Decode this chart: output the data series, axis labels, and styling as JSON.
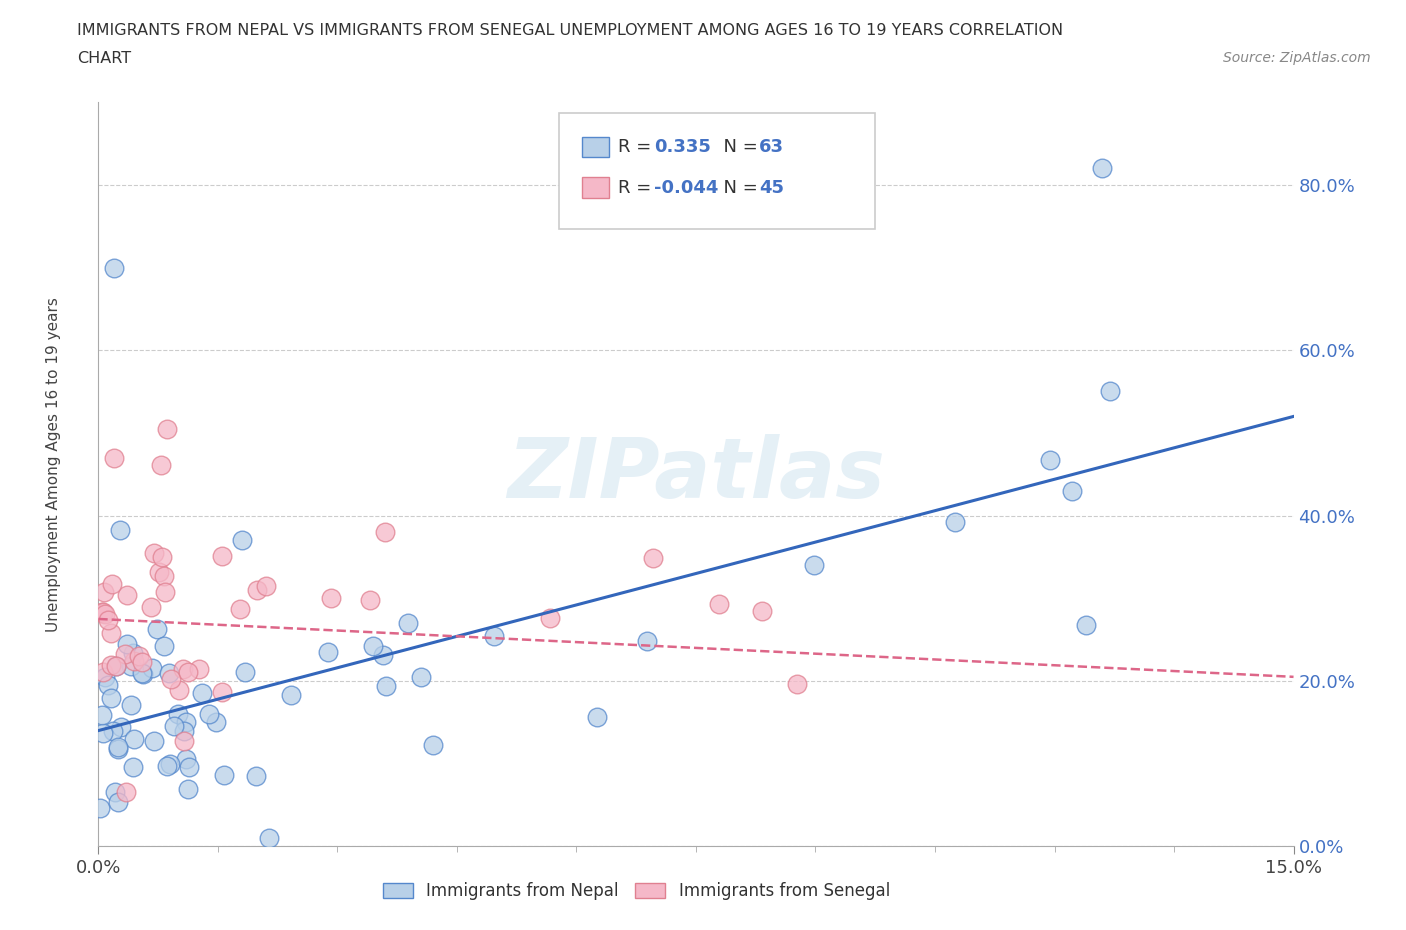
{
  "title_line1": "IMMIGRANTS FROM NEPAL VS IMMIGRANTS FROM SENEGAL UNEMPLOYMENT AMONG AGES 16 TO 19 YEARS CORRELATION",
  "title_line2": "CHART",
  "source": "Source: ZipAtlas.com",
  "ylabel": "Unemployment Among Ages 16 to 19 years",
  "xmin": 0.0,
  "xmax": 0.15,
  "ymin": 0.0,
  "ymax": 0.9,
  "nepal_R": 0.335,
  "nepal_N": 63,
  "senegal_R": -0.044,
  "senegal_N": 45,
  "nepal_fill": "#b8d0e8",
  "senegal_fill": "#f5b8c8",
  "nepal_edge": "#5588cc",
  "senegal_edge": "#e08090",
  "nepal_line_color": "#3366bb",
  "senegal_line_color": "#dd6688",
  "legend_label_nepal": "Immigrants from Nepal",
  "legend_label_senegal": "Immigrants from Senegal",
  "watermark": "ZIPatlas",
  "ytick_labels": [
    "0.0%",
    "20.0%",
    "40.0%",
    "60.0%",
    "80.0%"
  ],
  "ytick_values": [
    0.0,
    0.2,
    0.4,
    0.6,
    0.8
  ],
  "xtick_labels": [
    "0.0%",
    "15.0%"
  ],
  "xtick_values": [
    0.0,
    0.15
  ],
  "nepal_line_y0": 0.14,
  "nepal_line_y1": 0.52,
  "senegal_line_y0": 0.275,
  "senegal_line_y1": 0.205
}
